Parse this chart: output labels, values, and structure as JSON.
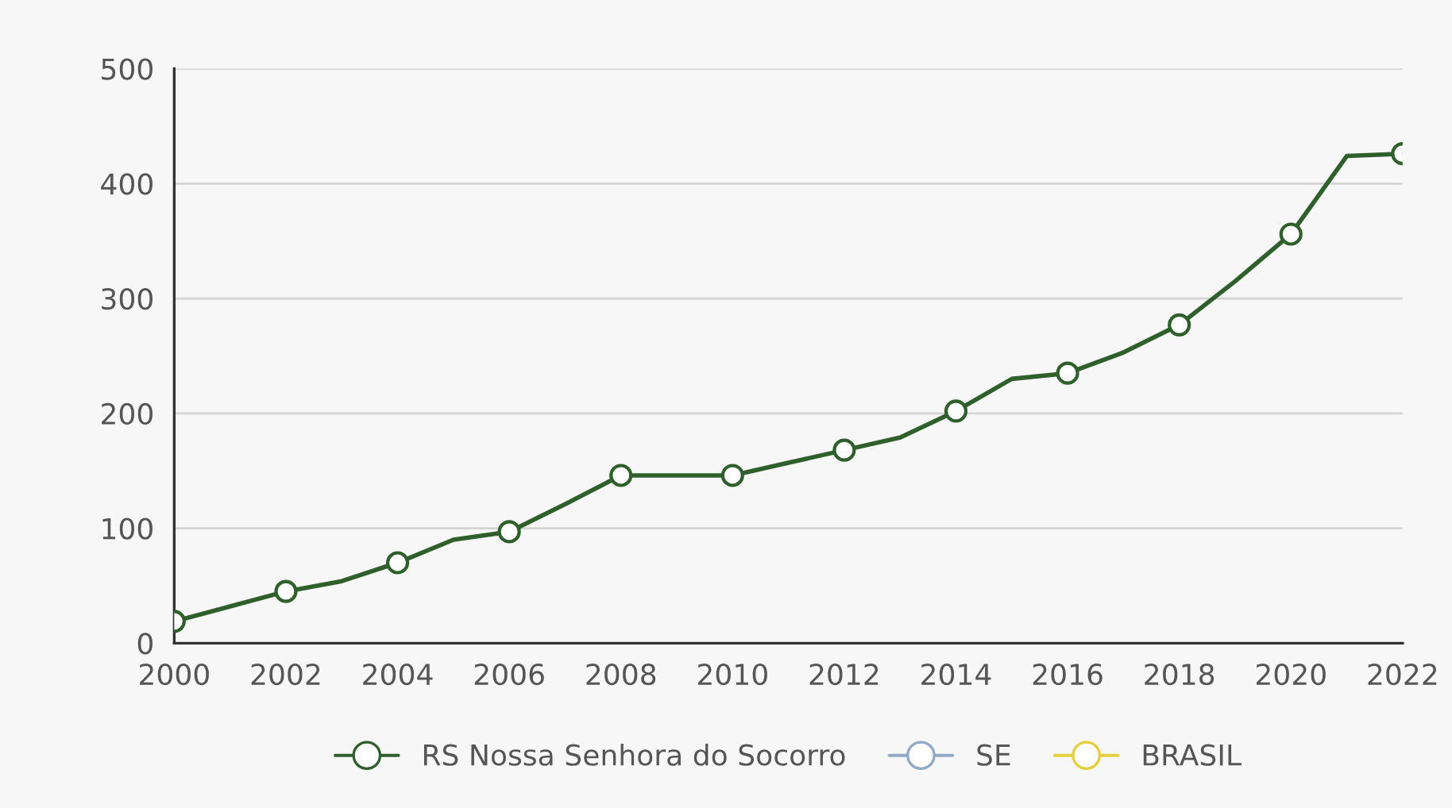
{
  "chart_data": {
    "type": "line",
    "x": [
      2000,
      2001,
      2002,
      2003,
      2004,
      2005,
      2006,
      2007,
      2008,
      2009,
      2010,
      2011,
      2012,
      2013,
      2014,
      2015,
      2016,
      2017,
      2018,
      2019,
      2020,
      2021,
      2022
    ],
    "series": [
      {
        "name": "RS Nossa Senhora do Socorro",
        "color": "#2f5f2b",
        "values": [
          19,
          32,
          45,
          54,
          70,
          90,
          97,
          121,
          146,
          146,
          146,
          157,
          168,
          179,
          202,
          230,
          235,
          253,
          277,
          315,
          356,
          424,
          426
        ]
      },
      {
        "name": "SE",
        "color": "#91a9c4",
        "values": [
          null,
          null,
          null,
          null,
          null,
          null,
          null,
          null,
          null,
          null,
          null,
          null,
          null,
          null,
          null,
          null,
          null,
          null,
          null,
          null,
          null,
          null,
          null
        ]
      },
      {
        "name": "BRASIL",
        "color": "#e6cf3c",
        "values": [
          null,
          null,
          null,
          null,
          null,
          null,
          null,
          null,
          null,
          null,
          null,
          null,
          null,
          null,
          null,
          null,
          null,
          null,
          null,
          null,
          null,
          null,
          null
        ]
      }
    ],
    "xlim": [
      2000,
      2022
    ],
    "xticks": [
      2000,
      2002,
      2004,
      2006,
      2008,
      2010,
      2012,
      2014,
      2016,
      2018,
      2020,
      2022
    ],
    "ylim": [
      0,
      500
    ],
    "yticks": [
      0,
      100,
      200,
      300,
      400,
      500
    ],
    "grid": "y",
    "legend": "bottom",
    "marker": "circle",
    "line_style": "solid"
  }
}
